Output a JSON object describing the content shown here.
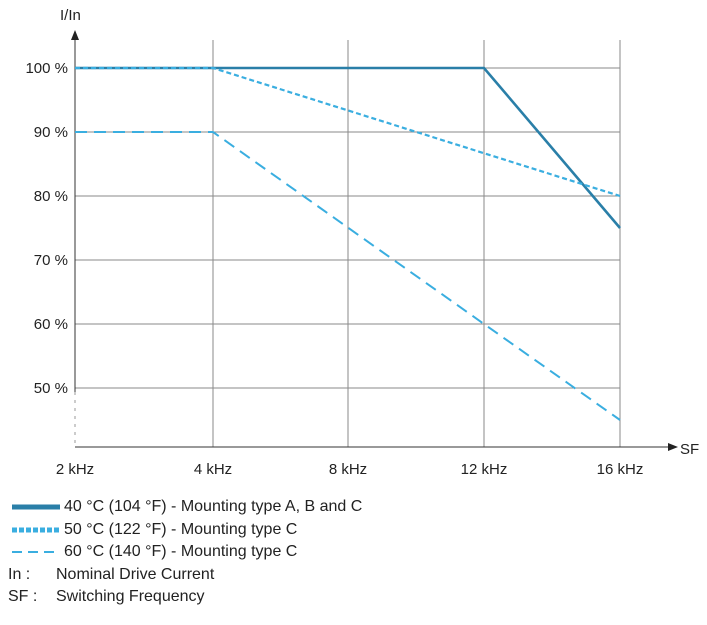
{
  "chart_data": {
    "type": "line",
    "ylabel": "I/In",
    "xlabel": "SF",
    "x_categories": [
      "2 kHz",
      "4 kHz",
      "8 kHz",
      "12 kHz",
      "16 kHz"
    ],
    "y_ticks": [
      50,
      60,
      70,
      80,
      90,
      100
    ],
    "y_tick_labels": [
      "50 %",
      "60 %",
      "70 %",
      "80 %",
      "90 %",
      "100 %"
    ],
    "ylim": [
      40,
      106
    ],
    "grid": true,
    "legend_position": "below",
    "series": [
      {
        "name": "40 °C (104 °F) - Mounting type A, B and C",
        "x": [
          "2 kHz",
          "4 kHz",
          "12 kHz",
          "16 kHz"
        ],
        "values": [
          100,
          100,
          100,
          75
        ],
        "color": "#2a7fa8",
        "style": "solid"
      },
      {
        "name": "50 °C (122 °F) - Mounting type C",
        "x": [
          "2 kHz",
          "4 kHz",
          "16 kHz"
        ],
        "values": [
          100,
          100,
          80
        ],
        "color": "#3aaee0",
        "style": "dotted"
      },
      {
        "name": "60 °C (140 °F) - Mounting type C",
        "x": [
          "2 kHz",
          "4 kHz",
          "12 kHz",
          "16 kHz"
        ],
        "values": [
          90,
          90,
          60,
          45
        ],
        "color": "#3aaee0",
        "style": "dashed"
      }
    ]
  },
  "notes": [
    {
      "key": "In :",
      "text": "Nominal Drive Current"
    },
    {
      "key": "SF :",
      "text": "Switching Frequency"
    }
  ]
}
